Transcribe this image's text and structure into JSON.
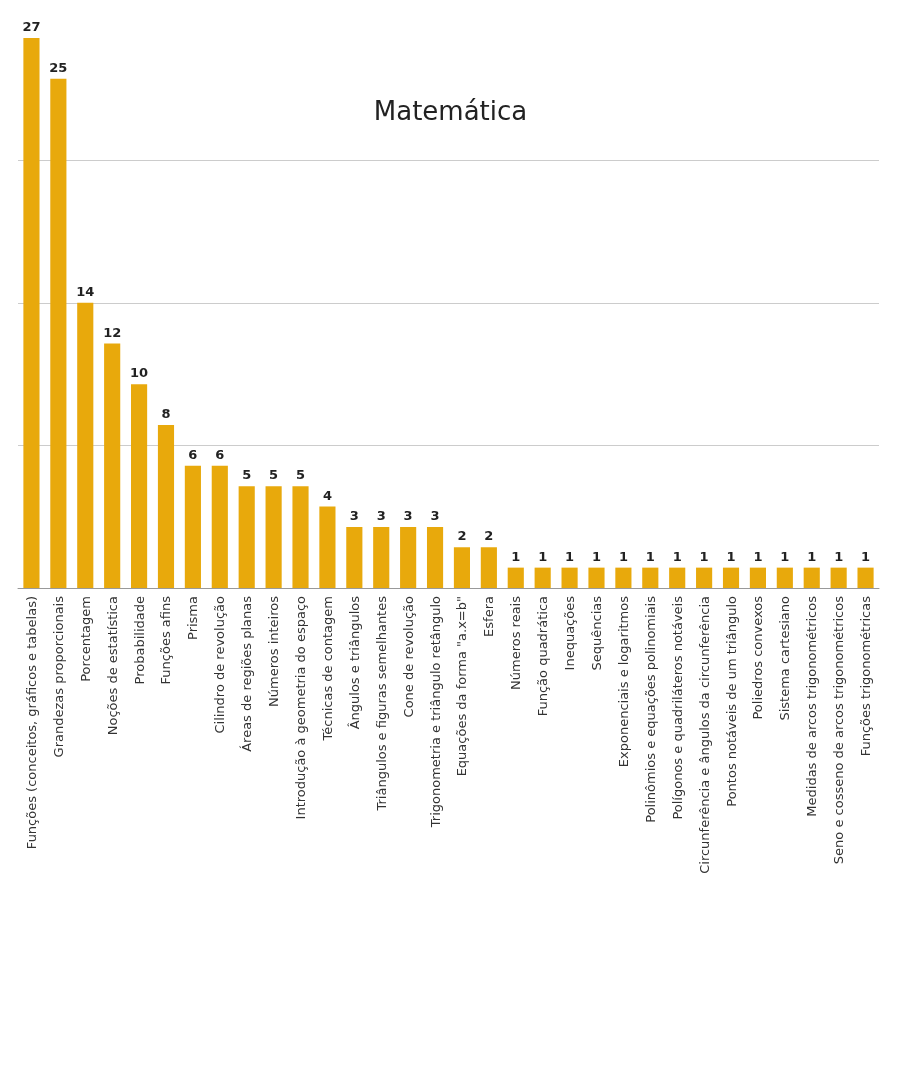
{
  "chart_data": {
    "type": "bar",
    "title": "Matemática",
    "categories": [
      "Funções (conceitos, gráficos e tabelas)",
      "Grandezas proporcionais",
      "Porcentagem",
      "Noções de estatística",
      "Probabilidade",
      "Funções afins",
      "Prisma",
      "Cilindro de revolução",
      "Áreas de regiões planas",
      "Números inteiros",
      "Introdução à geometria do espaço",
      "Técnicas de contagem",
      "Ângulos e triângulos",
      "Triângulos e figuras semelhantes",
      "Cone de revolução",
      "Trigonometria e triângulo retângulo",
      "Equações da forma \"a.x=b\"",
      "Esfera",
      "Números reais",
      "Função quadrática",
      "Inequações",
      "Sequências",
      "Exponenciais e logaritmos",
      "Polinômios e equações polinomiais",
      "Polígonos e quadriláteros notáveis",
      "Circunferência e ângulos da circunferência",
      "Pontos notáveis de um triângulo",
      "Poliedros convexos",
      "Sistema cartesiano",
      "Medidas de arcos trigonométricos",
      "Seno e cosseno de arcos trigonométricos",
      "Funções trigonométricas"
    ],
    "values": [
      27,
      25,
      14,
      12,
      10,
      8,
      6,
      6,
      5,
      5,
      5,
      4,
      3,
      3,
      3,
      3,
      2,
      2,
      1,
      1,
      1,
      1,
      1,
      1,
      1,
      1,
      1,
      1,
      1,
      1,
      1,
      1
    ],
    "color": "#e8a90c",
    "data_labels": true,
    "yticks": [
      {
        "value": 0,
        "label": null
      },
      {
        "value": 7,
        "label": null
      },
      {
        "value": 14,
        "label": null
      },
      {
        "value": 21,
        "label": null
      }
    ],
    "grid": "y",
    "tick_labels": "x"
  }
}
